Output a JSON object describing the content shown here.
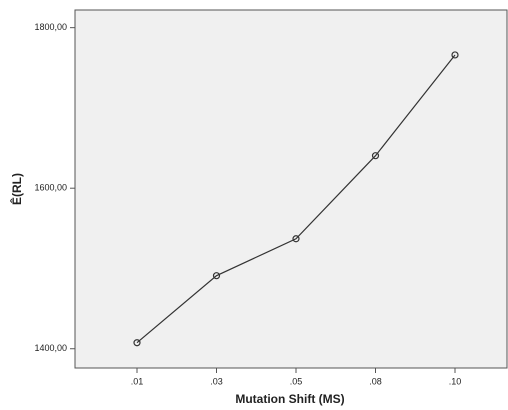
{
  "chart_data": {
    "type": "line",
    "x_label": "Mutation Shift (MS)",
    "y_label": "Ê(RL)",
    "categories": [
      ".01",
      ".03",
      ".05",
      ".08",
      ".10"
    ],
    "values": [
      1407.5,
      1491,
      1537,
      1640.5,
      1766
    ],
    "color": "#333333",
    "ylim": [
      1376,
      1822
    ],
    "yticks": [
      {
        "value": 1400,
        "label": "1400,00"
      },
      {
        "value": 1600,
        "label": "1600,00"
      },
      {
        "value": 1800,
        "label": "1800,00"
      }
    ],
    "grid": false
  }
}
